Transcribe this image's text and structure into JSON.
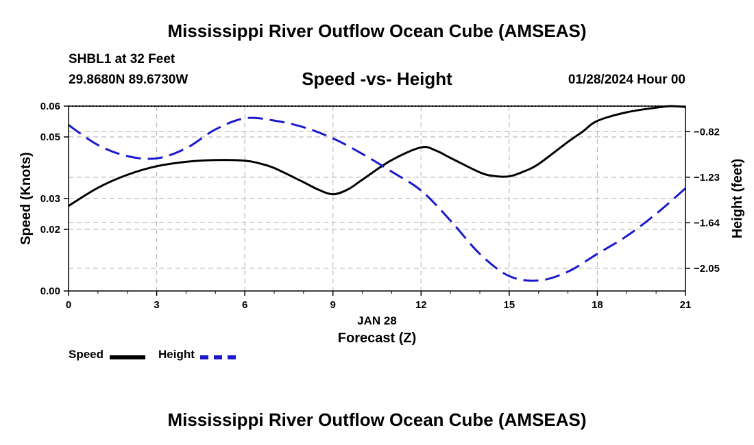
{
  "header": {
    "title": "Mississippi River Outflow Ocean Cube (AMSEAS)",
    "station": "SHBL1 at 32 Feet",
    "coordinates": "29.8680N  89.6730W",
    "subtitle": "Speed -vs- Height",
    "datetime": "01/28/2024 Hour 00"
  },
  "footer": {
    "title": "Mississippi River Outflow Ocean Cube (AMSEAS)"
  },
  "legend": {
    "speed_label": "Speed",
    "height_label": "Height"
  },
  "colors": {
    "speed": "#000000",
    "height": "#1a1acc",
    "grid": "#bbbbbb"
  },
  "chart_data": {
    "type": "line",
    "title": "Speed -vs- Height",
    "xlabel": "Forecast (Z)",
    "xlabel_date": "JAN 28",
    "xlim": [
      0,
      21
    ],
    "x_ticks": [
      0,
      3,
      6,
      9,
      12,
      15,
      18,
      21
    ],
    "x_tick_labels": [
      "0",
      "3",
      "6",
      "9",
      "12",
      "15",
      "18",
      "21"
    ],
    "y_left": {
      "label": "Speed (Knots)",
      "lim": [
        0,
        0.06
      ],
      "ticks": [
        0,
        0.02,
        0.03,
        0.05,
        0.06
      ],
      "tick_labels": [
        "0.00",
        "0.02",
        "0.03",
        "0.05",
        "0.06"
      ]
    },
    "y_right": {
      "label": "Height (feet)",
      "lim": [
        -2.254,
        -0.59
      ],
      "ticks": [
        -0.82,
        -1.23,
        -1.64,
        -2.05
      ],
      "tick_labels": [
        "-0.82",
        "-1.23",
        "-1.64",
        "-2.05"
      ]
    },
    "series": [
      {
        "name": "Speed",
        "axis": "left",
        "style": "solid",
        "x": [
          0,
          1,
          2,
          3,
          4,
          5,
          6,
          6.5,
          7,
          8,
          8.5,
          9,
          9.5,
          10,
          11,
          12,
          12.5,
          13,
          14,
          14.5,
          15,
          15.5,
          16,
          17,
          17.5,
          18,
          19,
          20,
          20.5,
          21
        ],
        "values": [
          0.0276,
          0.0335,
          0.0377,
          0.0405,
          0.0419,
          0.0425,
          0.0423,
          0.0414,
          0.0399,
          0.0353,
          0.0329,
          0.0314,
          0.0329,
          0.0361,
          0.0425,
          0.0466,
          0.0456,
          0.0432,
          0.0385,
          0.0373,
          0.0372,
          0.0388,
          0.0412,
          0.0484,
          0.0517,
          0.0552,
          0.058,
          0.0595,
          0.06,
          0.0597
        ]
      },
      {
        "name": "Height",
        "axis": "right",
        "style": "dashed",
        "x": [
          0,
          1,
          2,
          3,
          4,
          5,
          6,
          7,
          8,
          9,
          10,
          11,
          12,
          13,
          14,
          15,
          16,
          17,
          18,
          19,
          20,
          21
        ],
        "values": [
          -0.76,
          -0.94,
          -1.04,
          -1.06,
          -0.97,
          -0.8,
          -0.7,
          -0.72,
          -0.78,
          -0.88,
          -1.02,
          -1.18,
          -1.35,
          -1.62,
          -1.92,
          -2.12,
          -2.16,
          -2.08,
          -1.92,
          -1.76,
          -1.56,
          -1.33
        ]
      }
    ]
  }
}
